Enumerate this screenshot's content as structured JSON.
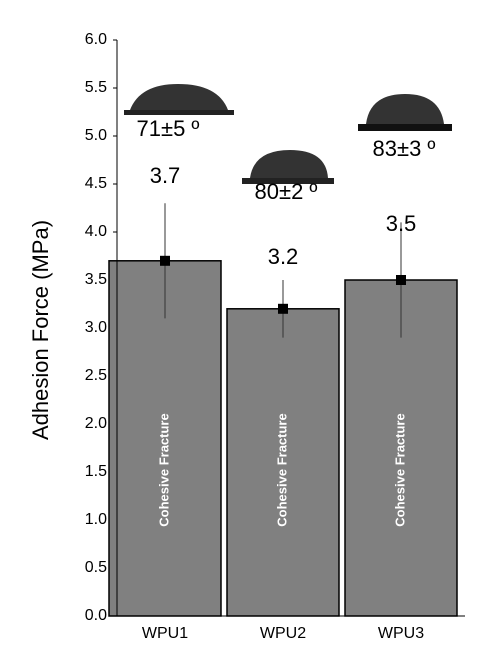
{
  "chart_data": {
    "type": "bar",
    "ylabel": "Adhesion Force (MPa)",
    "categories": [
      "WPU1",
      "WPU2",
      "WPU3"
    ],
    "values": [
      3.7,
      3.2,
      3.5
    ],
    "errors": [
      0.6,
      0.3,
      0.6
    ],
    "color": "#808080",
    "bar_labels": [
      "Cohesive Fracture",
      "Cohesive Fracture",
      "Cohesive Fracture"
    ],
    "annotations": [
      "71±5 º",
      "80±2 º",
      "83±3 º"
    ],
    "ylim": [
      0,
      6
    ],
    "yticks": [
      {
        "value": 0,
        "label": "0.0"
      },
      {
        "value": 0.5,
        "label": "0.5"
      },
      {
        "value": 1,
        "label": "1.0"
      },
      {
        "value": 1.5,
        "label": "1.5"
      },
      {
        "value": 2,
        "label": "2.0"
      },
      {
        "value": 2.5,
        "label": "2.5"
      },
      {
        "value": 3,
        "label": "3.0"
      },
      {
        "value": 3.5,
        "label": "3.5"
      },
      {
        "value": 4,
        "label": "4.0"
      },
      {
        "value": 4.5,
        "label": "4.5"
      },
      {
        "value": 5,
        "label": "5.0"
      },
      {
        "value": 5.5,
        "label": "5.5"
      },
      {
        "value": 6,
        "label": "6.0"
      }
    ]
  }
}
